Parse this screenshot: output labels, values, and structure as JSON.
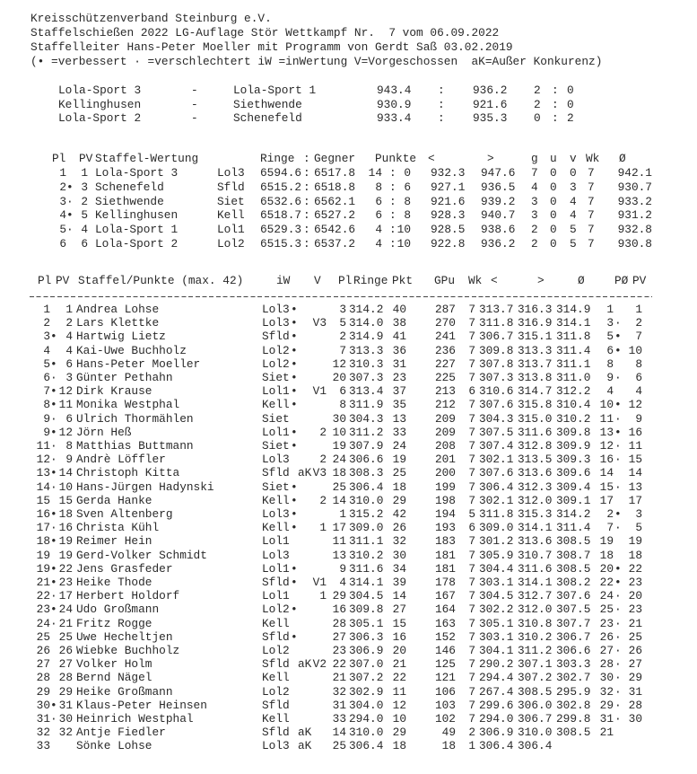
{
  "header": {
    "lines": [
      "Kreisschützenverband Steinburg e.V.",
      "Staffelschießen 2022 LG-Auflage Stör Wettkampf Nr.  7 vom 06.09.2022",
      "Staffelleiter Hans-Peter Moeller mit Programm von Gerdt Saß 03.02.2019",
      "(• =verbessert · =verschlechtert iW =inWertung V=Vorgeschossen  aK=Außer Konkurenz)"
    ]
  },
  "matchups": {
    "dash": "-",
    "colon": ":",
    "rows": [
      {
        "home": "Lola-Sport 3",
        "away": "Lola-Sport 1",
        "score_home": "943.4",
        "score_away": "936.2",
        "pts_home": "2",
        "pts_away": "0"
      },
      {
        "home": "Kellinghusen",
        "away": "Siethwende",
        "score_home": "930.9",
        "score_away": "921.6",
        "pts_home": "2",
        "pts_away": "0"
      },
      {
        "home": "Lola-Sport 2",
        "away": "Schenefeld",
        "score_home": "933.4",
        "score_away": "935.3",
        "pts_home": "0",
        "pts_away": "2"
      }
    ]
  },
  "staffel": {
    "colon": ":",
    "headers": [
      "Pl",
      "PV",
      "Staffel-Wertung",
      "Ringe",
      ":",
      "Gegner",
      "Punkte",
      "<",
      ">",
      "g",
      "u",
      "v",
      "Wk",
      "Ø"
    ],
    "rows": [
      [
        "1",
        "",
        "1",
        "Lola-Sport 3",
        "Lol3",
        "6594.6",
        "6517.8",
        "14",
        "0",
        "932.3",
        "947.6",
        "7",
        "0",
        "0",
        "7",
        "942.1"
      ],
      [
        "2",
        "•",
        "3",
        "Schenefeld",
        "Sfld",
        "6515.2",
        "6518.8",
        "8",
        "6",
        "927.1",
        "936.5",
        "4",
        "0",
        "3",
        "7",
        "930.7"
      ],
      [
        "3",
        "·",
        "2",
        "Siethwende",
        "Siet",
        "6532.6",
        "6562.1",
        "6",
        "8",
        "921.6",
        "939.2",
        "3",
        "0",
        "4",
        "7",
        "933.2"
      ],
      [
        "4",
        "•",
        "5",
        "Kellinghusen",
        "Kell",
        "6518.7",
        "6527.2",
        "6",
        "8",
        "928.3",
        "940.7",
        "3",
        "0",
        "4",
        "7",
        "931.2"
      ],
      [
        "5",
        "·",
        "4",
        "Lola-Sport 1",
        "Lol1",
        "6529.3",
        "6542.6",
        "4",
        "10",
        "928.5",
        "938.6",
        "2",
        "0",
        "5",
        "7",
        "932.8"
      ],
      [
        "6",
        "",
        "6",
        "Lola-Sport 2",
        "Lol2",
        "6515.3",
        "6537.2",
        "4",
        "10",
        "922.8",
        "936.2",
        "2",
        "0",
        "5",
        "7",
        "930.8"
      ]
    ]
  },
  "main": {
    "headers": [
      "Pl",
      "PV",
      "Staffel/Punkte (max. 42)",
      "iW",
      "V",
      "Pl",
      "Ringe",
      "Pkt",
      "GPu",
      "Wk",
      "<",
      ">",
      "Ø",
      "PØ",
      "PV"
    ],
    "rows": [
      [
        "1",
        "",
        "1",
        "Andrea Lohse",
        "Lol3",
        "•",
        "",
        "",
        "3",
        "314.2",
        "40",
        "287",
        "7",
        "313.7",
        "316.3",
        "314.9",
        "1",
        "",
        "1"
      ],
      [
        "2",
        "",
        "2",
        "Lars Klettke",
        "Lol3",
        "•",
        "",
        "V3",
        "5",
        "314.0",
        "38",
        "270",
        "7",
        "311.8",
        "316.9",
        "314.1",
        "3",
        "·",
        "2"
      ],
      [
        "3",
        "•",
        "4",
        "Hartwig Lietz",
        "Sfld",
        "•",
        "",
        "",
        "2",
        "314.9",
        "41",
        "241",
        "7",
        "306.7",
        "315.1",
        "311.8",
        "5",
        "•",
        "7"
      ],
      [
        "4",
        "",
        "4",
        "Kai-Uwe Buchholz",
        "Lol2",
        "•",
        "",
        "",
        "7",
        "313.3",
        "36",
        "236",
        "7",
        "309.8",
        "313.3",
        "311.4",
        "6",
        "•",
        "10"
      ],
      [
        "5",
        "•",
        "6",
        "Hans-Peter Moeller",
        "Lol2",
        "•",
        "",
        "",
        "12",
        "310.3",
        "31",
        "227",
        "7",
        "307.8",
        "313.7",
        "311.1",
        "8",
        "",
        "8"
      ],
      [
        "6",
        "·",
        "3",
        "Günter Pethahn",
        "Siet",
        "•",
        "",
        "",
        "20",
        "307.3",
        "23",
        "225",
        "7",
        "307.3",
        "313.8",
        "311.0",
        "9",
        "·",
        "6"
      ],
      [
        "7",
        "•",
        "12",
        "Dirk Krause",
        "Lol1",
        "•",
        "",
        "V1",
        "6",
        "313.4",
        "37",
        "213",
        "6",
        "310.6",
        "314.7",
        "312.2",
        "4",
        "",
        "4"
      ],
      [
        "8",
        "•",
        "11",
        "Monika Westphal",
        "Kell",
        "•",
        "",
        "",
        "8",
        "311.9",
        "35",
        "212",
        "7",
        "307.6",
        "315.8",
        "310.4",
        "10",
        "•",
        "12"
      ],
      [
        "9",
        "·",
        "6",
        "Ulrich Thormählen",
        "Siet",
        "",
        "",
        "",
        "30",
        "304.3",
        "13",
        "209",
        "7",
        "304.3",
        "315.0",
        "310.2",
        "11",
        "·",
        "9"
      ],
      [
        "9",
        "•",
        "12",
        "Jörn Heß",
        "Lol1",
        "•",
        "",
        "2",
        "10",
        "311.2",
        "33",
        "209",
        "7",
        "307.5",
        "311.6",
        "309.8",
        "13",
        "•",
        "16"
      ],
      [
        "11",
        "·",
        "8",
        "Matthias Buttmann",
        "Siet",
        "•",
        "",
        "",
        "19",
        "307.9",
        "24",
        "208",
        "7",
        "307.4",
        "312.8",
        "309.9",
        "12",
        "·",
        "11"
      ],
      [
        "12",
        "·",
        "9",
        "Andrè Löffler",
        "Lol3",
        "",
        "",
        "2",
        "24",
        "306.6",
        "19",
        "201",
        "7",
        "302.1",
        "313.5",
        "309.3",
        "16",
        "·",
        "15"
      ],
      [
        "13",
        "•",
        "14",
        "Christoph Kitta",
        "Sfld",
        "",
        "aK",
        "V3",
        "18",
        "308.3",
        "25",
        "200",
        "7",
        "307.6",
        "313.6",
        "309.6",
        "14",
        "",
        "14"
      ],
      [
        "14",
        "·",
        "10",
        "Hans-Jürgen Hadynski",
        "Siet",
        "•",
        "",
        "",
        "25",
        "306.4",
        "18",
        "199",
        "7",
        "306.4",
        "312.3",
        "309.4",
        "15",
        "·",
        "13"
      ],
      [
        "15",
        "",
        "15",
        "Gerda Hanke",
        "Kell",
        "•",
        "",
        "2",
        "14",
        "310.0",
        "29",
        "198",
        "7",
        "302.1",
        "312.0",
        "309.1",
        "17",
        "",
        "17"
      ],
      [
        "16",
        "•",
        "18",
        "Sven Altenberg",
        "Lol3",
        "•",
        "",
        "",
        "1",
        "315.2",
        "42",
        "194",
        "5",
        "311.8",
        "315.3",
        "314.2",
        "2",
        "•",
        "3"
      ],
      [
        "17",
        "·",
        "16",
        "Christa Kühl",
        "Kell",
        "•",
        "",
        "1",
        "17",
        "309.0",
        "26",
        "193",
        "6",
        "309.0",
        "314.1",
        "311.4",
        "7",
        "·",
        "5"
      ],
      [
        "18",
        "•",
        "19",
        "Reimer Hein",
        "Lol1",
        "",
        "",
        "",
        "11",
        "311.1",
        "32",
        "183",
        "7",
        "301.2",
        "313.6",
        "308.5",
        "19",
        "",
        "19"
      ],
      [
        "19",
        "",
        "19",
        "Gerd-Volker Schmidt",
        "Lol3",
        "",
        "",
        "",
        "13",
        "310.2",
        "30",
        "181",
        "7",
        "305.9",
        "310.7",
        "308.7",
        "18",
        "",
        "18"
      ],
      [
        "19",
        "•",
        "22",
        "Jens Grasfeder",
        "Lol1",
        "•",
        "",
        "",
        "9",
        "311.6",
        "34",
        "181",
        "7",
        "304.4",
        "311.6",
        "308.5",
        "20",
        "•",
        "22"
      ],
      [
        "21",
        "•",
        "23",
        "Heike Thode",
        "Sfld",
        "•",
        "",
        "V1",
        "4",
        "314.1",
        "39",
        "178",
        "7",
        "303.1",
        "314.1",
        "308.2",
        "22",
        "•",
        "23"
      ],
      [
        "22",
        "·",
        "17",
        "Herbert Holdorf",
        "Lol1",
        "",
        "",
        "1",
        "29",
        "304.5",
        "14",
        "167",
        "7",
        "304.5",
        "312.7",
        "307.6",
        "24",
        "·",
        "20"
      ],
      [
        "23",
        "•",
        "24",
        "Udo Großmann",
        "Lol2",
        "•",
        "",
        "",
        "16",
        "309.8",
        "27",
        "164",
        "7",
        "302.2",
        "312.0",
        "307.5",
        "25",
        "·",
        "23"
      ],
      [
        "24",
        "·",
        "21",
        "Fritz Rogge",
        "Kell",
        "",
        "",
        "",
        "28",
        "305.1",
        "15",
        "163",
        "7",
        "305.1",
        "310.8",
        "307.7",
        "23",
        "·",
        "21"
      ],
      [
        "25",
        "",
        "25",
        "Uwe Hecheltjen",
        "Sfld",
        "•",
        "",
        "",
        "27",
        "306.3",
        "16",
        "152",
        "7",
        "303.1",
        "310.2",
        "306.7",
        "26",
        "·",
        "25"
      ],
      [
        "26",
        "",
        "26",
        "Wiebke Buchholz",
        "Lol2",
        "",
        "",
        "",
        "23",
        "306.9",
        "20",
        "146",
        "7",
        "304.1",
        "311.2",
        "306.6",
        "27",
        "·",
        "26"
      ],
      [
        "27",
        "",
        "27",
        "Volker Holm",
        "Sfld",
        "",
        "aK",
        "V2",
        "22",
        "307.0",
        "21",
        "125",
        "7",
        "290.2",
        "307.1",
        "303.3",
        "28",
        "·",
        "27"
      ],
      [
        "28",
        "",
        "28",
        "Bernd Nägel",
        "Kell",
        "",
        "",
        "",
        "21",
        "307.2",
        "22",
        "121",
        "7",
        "294.4",
        "307.2",
        "302.7",
        "30",
        "·",
        "29"
      ],
      [
        "29",
        "",
        "29",
        "Heike Großmann",
        "Lol2",
        "",
        "",
        "",
        "32",
        "302.9",
        "11",
        "106",
        "7",
        "267.4",
        "308.5",
        "295.9",
        "32",
        "·",
        "31"
      ],
      [
        "30",
        "•",
        "31",
        "Klaus-Peter Heinsen",
        "Sfld",
        "",
        "",
        "",
        "31",
        "304.0",
        "12",
        "103",
        "7",
        "299.6",
        "306.0",
        "302.8",
        "29",
        "·",
        "28"
      ],
      [
        "31",
        "·",
        "30",
        "Heinrich Westphal",
        "Kell",
        "",
        "",
        "",
        "33",
        "294.0",
        "10",
        "102",
        "7",
        "294.0",
        "306.7",
        "299.8",
        "31",
        "·",
        "30"
      ],
      [
        "32",
        "",
        "32",
        "Antje Fiedler",
        "Sfld",
        "",
        "aK",
        "",
        "14",
        "310.0",
        "29",
        "49",
        "2",
        "306.9",
        "310.0",
        "308.5",
        "21",
        "",
        ""
      ],
      [
        "33",
        "",
        "",
        "Sönke Lohse",
        "Lol3",
        "",
        "aK",
        "",
        "25",
        "306.4",
        "18",
        "18",
        "1",
        "306.4",
        "306.4",
        "",
        "",
        "",
        ""
      ]
    ]
  }
}
